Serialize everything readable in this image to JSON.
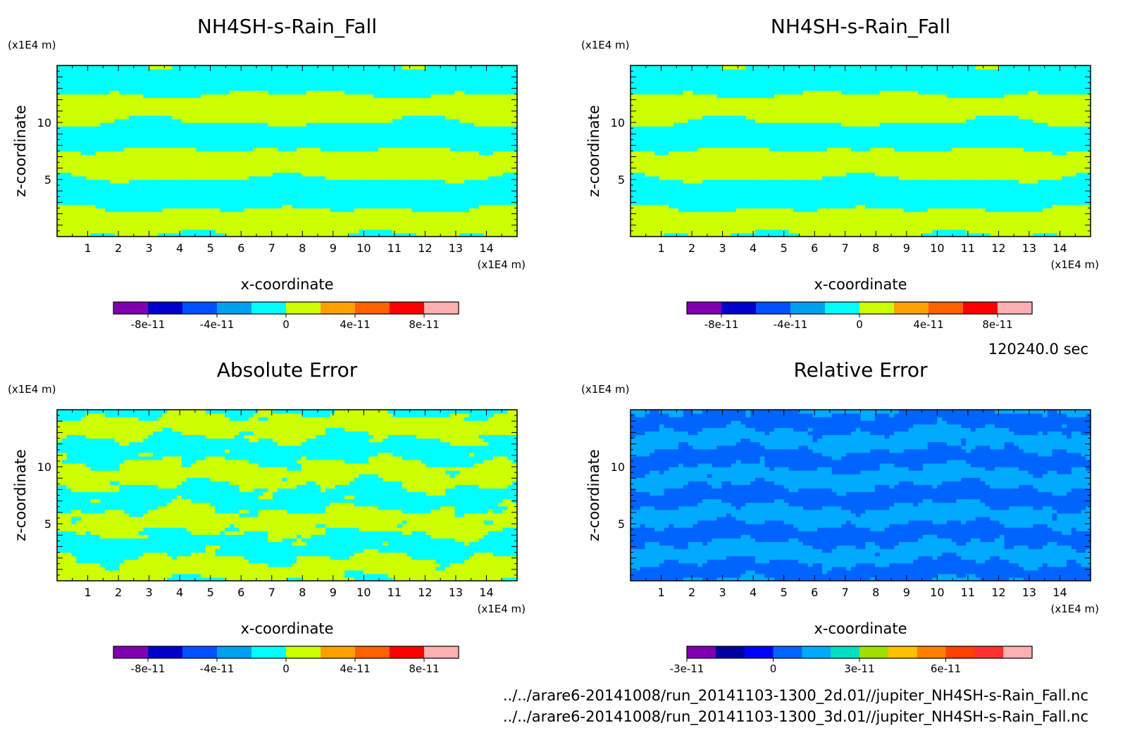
{
  "figure": {
    "time_label": "120240.0 sec",
    "files": [
      "../../arare6-20141008/run_20141103-1300_2d.01//jupiter_NH4SH-s-Rain_Fall.nc",
      "../../arare6-20141008/run_20141103-1300_3d.01//jupiter_NH4SH-s-Rain_Fall.nc"
    ]
  },
  "chart_data": [
    {
      "type": "heatmap",
      "title": "NH4SH-s-Rain_Fall",
      "xlabel": "x-coordinate",
      "ylabel": "z-coordinate",
      "x_unit": "(x1E4 m)",
      "y_unit": "(x1E4 m)",
      "xlim": [
        0,
        15
      ],
      "ylim": [
        0,
        15
      ],
      "x_ticks": [
        1,
        2,
        3,
        4,
        5,
        6,
        7,
        8,
        9,
        10,
        11,
        12,
        13,
        14
      ],
      "y_ticks": [
        5,
        10
      ],
      "field": "symmetric",
      "colorbar": {
        "colors": [
          "#8000b0",
          "#0000c8",
          "#0050ff",
          "#00a0f0",
          "#00ffff",
          "#ccff00",
          "#ffa000",
          "#ff6000",
          "#ff0000",
          "#ffb0b0"
        ],
        "tick_labels": [
          "-8e-11",
          "-4e-11",
          "0",
          "4e-11",
          "8e-11"
        ],
        "tick_positions": [
          1,
          3,
          5,
          7,
          9
        ]
      },
      "colors": [
        "#ccff00",
        "#00ffff"
      ]
    },
    {
      "type": "heatmap",
      "title": "NH4SH-s-Rain_Fall",
      "xlabel": "x-coordinate",
      "ylabel": "z-coordinate",
      "x_unit": "(x1E4 m)",
      "y_unit": "(x1E4 m)",
      "xlim": [
        0,
        15
      ],
      "ylim": [
        0,
        15
      ],
      "x_ticks": [
        1,
        2,
        3,
        4,
        5,
        6,
        7,
        8,
        9,
        10,
        11,
        12,
        13,
        14
      ],
      "y_ticks": [
        5,
        10
      ],
      "field": "symmetric",
      "colorbar": {
        "colors": [
          "#8000b0",
          "#0000c8",
          "#0050ff",
          "#00a0f0",
          "#00ffff",
          "#ccff00",
          "#ffa000",
          "#ff6000",
          "#ff0000",
          "#ffb0b0"
        ],
        "tick_labels": [
          "-8e-11",
          "-4e-11",
          "0",
          "4e-11",
          "8e-11"
        ],
        "tick_positions": [
          1,
          3,
          5,
          7,
          9
        ]
      },
      "colors": [
        "#ccff00",
        "#00ffff"
      ]
    },
    {
      "type": "heatmap",
      "title": "Absolute Error",
      "xlabel": "x-coordinate",
      "ylabel": "z-coordinate",
      "x_unit": "(x1E4 m)",
      "y_unit": "(x1E4 m)",
      "xlim": [
        0,
        15
      ],
      "ylim": [
        0,
        15
      ],
      "x_ticks": [
        1,
        2,
        3,
        4,
        5,
        6,
        7,
        8,
        9,
        10,
        11,
        12,
        13,
        14
      ],
      "y_ticks": [
        5,
        10
      ],
      "field": "noisy",
      "colorbar": {
        "colors": [
          "#8000b0",
          "#0000c8",
          "#0050ff",
          "#00a0f0",
          "#00ffff",
          "#ccff00",
          "#ffa000",
          "#ff6000",
          "#ff0000",
          "#ffb0b0"
        ],
        "tick_labels": [
          "-8e-11",
          "-4e-11",
          "0",
          "4e-11",
          "8e-11"
        ],
        "tick_positions": [
          1,
          3,
          5,
          7,
          9
        ]
      },
      "colors": [
        "#ccff00",
        "#00ffff"
      ]
    },
    {
      "type": "heatmap",
      "title": "Relative Error",
      "xlabel": "x-coordinate",
      "ylabel": "z-coordinate",
      "x_unit": "(x1E4 m)",
      "y_unit": "(x1E4 m)",
      "xlim": [
        0,
        15
      ],
      "ylim": [
        0,
        15
      ],
      "x_ticks": [
        1,
        2,
        3,
        4,
        5,
        6,
        7,
        8,
        9,
        10,
        11,
        12,
        13,
        14
      ],
      "y_ticks": [
        5,
        10
      ],
      "field": "relative",
      "colorbar": {
        "colors": [
          "#8000b0",
          "#0000a0",
          "#0000ff",
          "#0064ff",
          "#00aaff",
          "#00e0c0",
          "#a0e000",
          "#ffc000",
          "#ff8000",
          "#ff4000",
          "#ff3030",
          "#ffb0b0"
        ],
        "tick_labels": [
          "-3e-11",
          "0",
          "3e-11",
          "6e-11"
        ],
        "tick_positions": [
          0,
          3,
          6,
          9
        ]
      },
      "colors": [
        "#0064ff",
        "#00aaff"
      ]
    }
  ]
}
